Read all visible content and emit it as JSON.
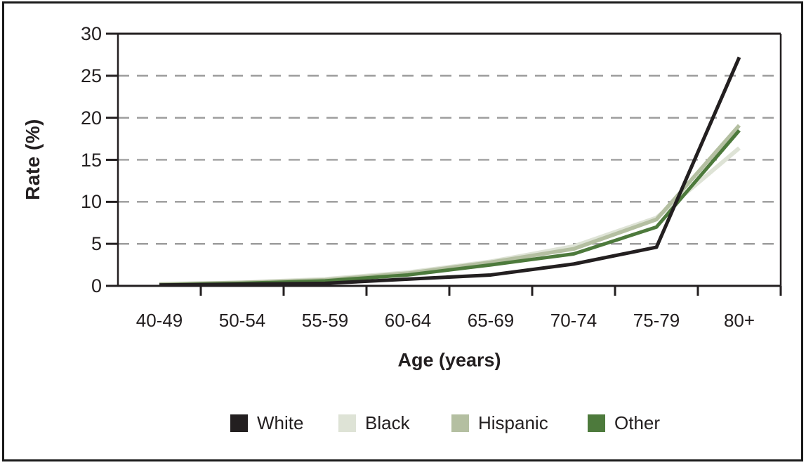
{
  "figure": {
    "background": "#ffffff",
    "border_color": "#1a1a1a"
  },
  "axis": {
    "line_color": "#231f20",
    "grid_color": "#9b9b9b",
    "grid_style": "dashed"
  },
  "chart_data": {
    "type": "line",
    "title": "",
    "xlabel": "Age (years)",
    "ylabel": "Rate (%)",
    "categories": [
      "40-49",
      "50-54",
      "55-59",
      "60-64",
      "65-69",
      "70-74",
      "75-79",
      "80+"
    ],
    "ylim": [
      0,
      30
    ],
    "yticks": [
      0,
      5,
      10,
      15,
      20,
      25,
      30
    ],
    "grid": "horizontal dashed gridlines at 5, 10, 15, 20, 25",
    "legend_position": "bottom",
    "series": [
      {
        "name": "White",
        "color": "#231f20",
        "values": [
          0.1,
          0.2,
          0.3,
          0.8,
          1.3,
          2.6,
          4.6,
          27.2
        ]
      },
      {
        "name": "Black",
        "color": "#dee3d6",
        "values": [
          0.2,
          0.4,
          0.8,
          1.6,
          2.9,
          4.7,
          8.1,
          16.4
        ]
      },
      {
        "name": "Hispanic",
        "color": "#b4bfa1",
        "values": [
          0.2,
          0.4,
          0.7,
          1.5,
          2.8,
          4.4,
          7.9,
          19.1
        ]
      },
      {
        "name": "Other",
        "color": "#4d7a3c",
        "values": [
          0.1,
          0.3,
          0.6,
          1.3,
          2.5,
          3.8,
          7.0,
          18.5
        ]
      }
    ]
  }
}
